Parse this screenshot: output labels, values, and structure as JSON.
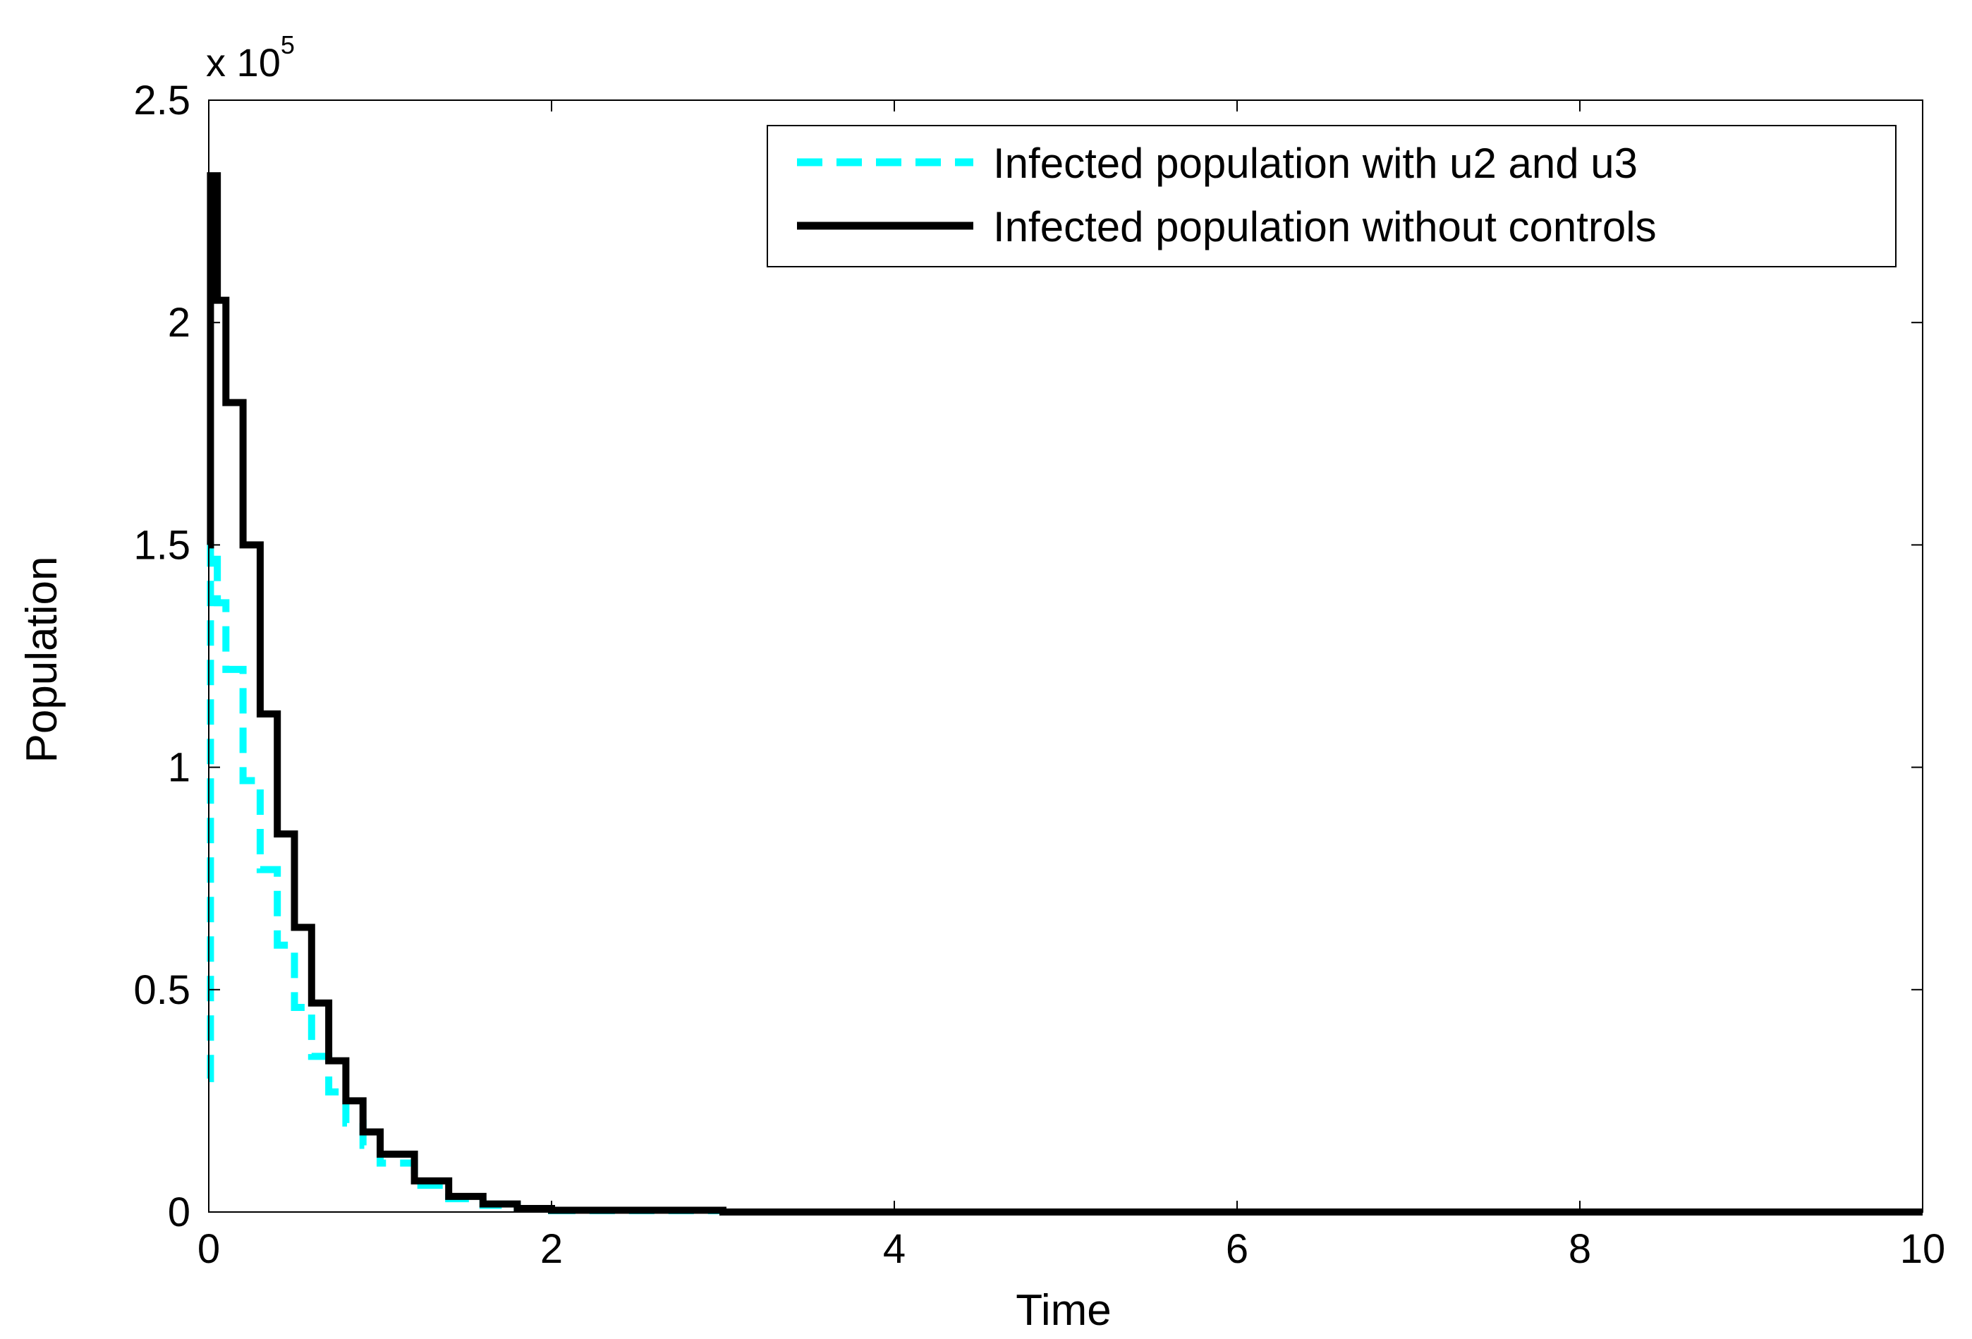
{
  "chart_data": {
    "type": "line",
    "title": "",
    "xlabel": "Time",
    "ylabel": "Population",
    "xlim": [
      0,
      10
    ],
    "ylim": [
      0,
      2.5
    ],
    "y_scale_label": "x 10",
    "y_scale_exponent": "5",
    "x_ticks": [
      0,
      2,
      4,
      6,
      8,
      10
    ],
    "x_tick_labels": [
      "0",
      "2",
      "4",
      "6",
      "8",
      "10"
    ],
    "y_ticks": [
      0,
      0.5,
      1,
      1.5,
      2,
      2.5
    ],
    "y_tick_labels": [
      "0",
      "0.5",
      "1",
      "1.5",
      "2",
      "2.5"
    ],
    "grid": false,
    "legend_position": "top-right",
    "series": [
      {
        "name": "Infected population with u2 and u3",
        "color": "#00ffff",
        "style": "dashed",
        "x": [
          0,
          0.01,
          0.05,
          0.1,
          0.2,
          0.3,
          0.4,
          0.5,
          0.6,
          0.7,
          0.8,
          0.9,
          1.0,
          1.2,
          1.4,
          1.6,
          1.8,
          2.0,
          3,
          4,
          5,
          6,
          7,
          8,
          9,
          10
        ],
        "values": [
          0.3,
          1.5,
          1.37,
          1.22,
          0.97,
          0.77,
          0.6,
          0.46,
          0.35,
          0.27,
          0.2,
          0.15,
          0.11,
          0.06,
          0.03,
          0.015,
          0.007,
          0.003,
          0,
          0,
          0,
          0,
          0,
          0,
          0,
          0
        ]
      },
      {
        "name": "Infected population without controls",
        "color": "#000000",
        "style": "solid",
        "x": [
          0,
          0.01,
          0.05,
          0.1,
          0.2,
          0.3,
          0.4,
          0.5,
          0.6,
          0.7,
          0.8,
          0.9,
          1.0,
          1.2,
          1.4,
          1.6,
          1.8,
          2.0,
          3,
          4,
          5,
          6,
          7,
          8,
          9,
          10
        ],
        "values": [
          1.5,
          2.33,
          2.05,
          1.82,
          1.5,
          1.12,
          0.85,
          0.64,
          0.47,
          0.34,
          0.25,
          0.18,
          0.13,
          0.07,
          0.035,
          0.018,
          0.008,
          0.004,
          0,
          0,
          0,
          0,
          0,
          0,
          0,
          0
        ]
      }
    ]
  }
}
